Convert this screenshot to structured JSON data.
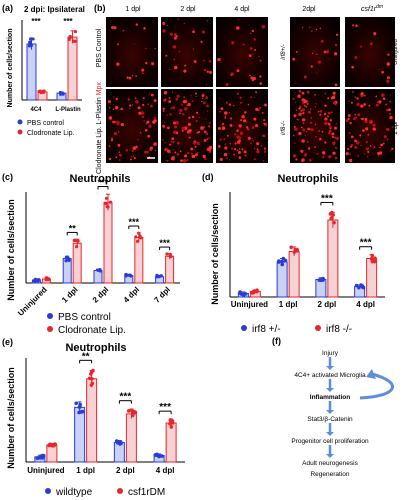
{
  "panels": {
    "a": {
      "letter": "(a)",
      "title": "2 dpi: Ipsilateral",
      "ylabel": "Number of cells/section",
      "categories": [
        "4C4",
        "L-Plastin"
      ],
      "legend": [
        "PBS control",
        "Clodronate Lip."
      ],
      "sig": [
        "***",
        "***"
      ]
    },
    "b": {
      "letter": "(b)",
      "cols": [
        "1 dpl",
        "2 dpl",
        "4 dpl",
        "2dpl"
      ],
      "col5": "csf1r",
      "col5_sup": "dm",
      "row_labels": [
        "PBS Control",
        "Clodronate Lip."
      ],
      "stain_left": "L-Plastin",
      "stain_right": "Mpx",
      "side_labels": [
        "irf8+/-",
        "irf8-/-"
      ],
      "right_labels": [
        "Uninjured",
        "2 dpl"
      ]
    },
    "c": {
      "letter": "(c)",
      "title": "Neutrophils",
      "ylabel": "Number of cells/section",
      "legend": [
        "PBS control",
        "Clodronate Lip."
      ],
      "sig": [
        "**",
        "***",
        "***",
        "***"
      ]
    },
    "d": {
      "letter": "(d)",
      "title": "Neutrophils",
      "ylabel": "Number of cells/section",
      "legend": [
        "irf8 +/-",
        "irf8 -/-"
      ],
      "sig": [
        "***",
        "***"
      ]
    },
    "e": {
      "letter": "(e)",
      "title": "Neutrophils",
      "ylabel": "Number of cells/section",
      "legend": [
        "wildtype",
        "csf1rDM"
      ],
      "sig": [
        "**",
        "***",
        "***"
      ]
    },
    "f": {
      "letter": "(f)",
      "steps": [
        "Injury",
        "4C4+ activated Microglia",
        "Inflammation",
        "Stat3/β-Catenin",
        "Progenitor cell proliferation",
        "Adult neurogenesis",
        "Regeneration"
      ]
    }
  },
  "colors": {
    "blue": "#2a3bd6",
    "red": "#e8262b",
    "light_blue": "#c9d2f4",
    "light_red": "#f6d2d4",
    "flow": "#5b8fd9"
  },
  "chart_data": [
    {
      "panel": "a",
      "type": "bar",
      "categories": [
        "4C4",
        "L-Plastin"
      ],
      "ylim": [
        0,
        7
      ],
      "series": [
        {
          "name": "PBS control",
          "values": [
            4.9,
            0.6
          ]
        },
        {
          "name": "Clodronate Lip.",
          "values": [
            0.7,
            5.5
          ]
        }
      ]
    },
    {
      "panel": "c",
      "type": "bar",
      "categories": [
        "Uninjured",
        "1 dpl",
        "2 dpl",
        "4 dpl",
        "7 dpl"
      ],
      "ylim": [
        0,
        160
      ],
      "series": [
        {
          "name": "PBS control",
          "values": [
            5,
            43,
            22,
            13,
            11
          ]
        },
        {
          "name": "Clodronate Lip.",
          "values": [
            7,
            70,
            142,
            80,
            47
          ]
        }
      ]
    },
    {
      "panel": "d",
      "type": "bar",
      "categories": [
        "Uninjured",
        "1 dpl",
        "2 dpl",
        "4 dpl"
      ],
      "ylim": [
        0,
        150
      ],
      "series": [
        {
          "name": "irf8 +/-",
          "values": [
            5,
            50,
            25,
            15
          ]
        },
        {
          "name": "irf8 -/-",
          "values": [
            8,
            65,
            110,
            55
          ]
        }
      ]
    },
    {
      "panel": "e",
      "type": "bar",
      "categories": [
        "Uninjured",
        "1 dpl",
        "2 dpl",
        "4 dpl"
      ],
      "ylim": [
        0,
        80
      ],
      "series": [
        {
          "name": "wildtype",
          "values": [
            4,
            42,
            15,
            5
          ]
        },
        {
          "name": "csf1rDM",
          "values": [
            13,
            64,
            37,
            30
          ]
        }
      ]
    }
  ]
}
